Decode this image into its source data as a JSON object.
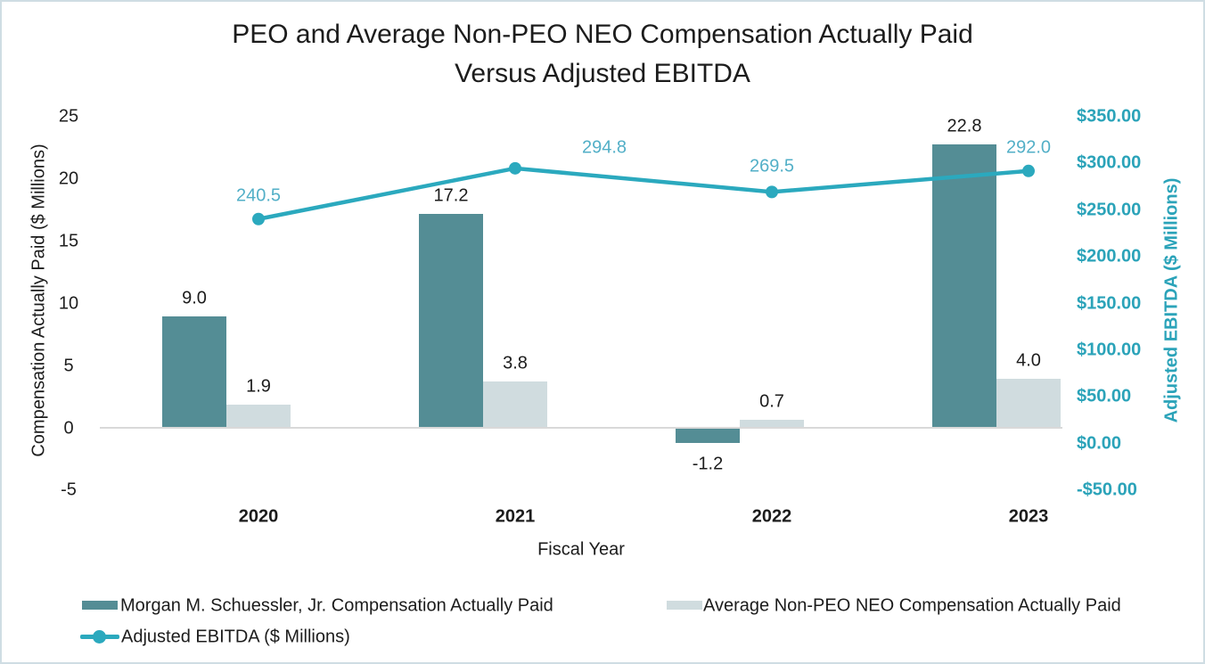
{
  "chart_data": {
    "type": "combo",
    "title_lines": [
      "PEO and Average Non-PEO NEO Compensation Actually Paid",
      "Versus Adjusted EBITDA"
    ],
    "categories": [
      "2020",
      "2021",
      "2022",
      "2023"
    ],
    "xlabel": "Fiscal Year",
    "left_axis": {
      "label": "Compensation Actually Paid ($ Millions)",
      "ticks": [
        25,
        20,
        15,
        10,
        5,
        0,
        -5
      ],
      "range": [
        -5,
        25
      ]
    },
    "right_axis": {
      "label": "Adjusted EBITDA ($ Millions)",
      "tick_values": [
        350,
        300,
        250,
        200,
        150,
        100,
        50,
        0,
        -50
      ],
      "tick_labels": [
        "$350.00",
        "$300.00",
        "$250.00",
        "$200.00",
        "$150.00",
        "$100.00",
        "$50.00",
        "$0.00",
        "-$50.00"
      ],
      "range": [
        -50,
        350
      ],
      "label_color": "#2ba3b9"
    },
    "series": [
      {
        "name": "Morgan M. Schuessler, Jr. Compensation Actually Paid",
        "type": "bar",
        "axis": "left",
        "color": "#548d95",
        "values": [
          9.0,
          17.2,
          -1.2,
          22.8
        ],
        "labels": [
          "9.0",
          "17.2",
          "-1.2",
          "22.8"
        ]
      },
      {
        "name": "Average Non-PEO NEO Compensation Actually Paid",
        "type": "bar",
        "axis": "left",
        "color": "#d0dcdf",
        "values": [
          1.9,
          3.8,
          0.7,
          4.0
        ],
        "labels": [
          "1.9",
          "3.8",
          "0.7",
          "4.0"
        ]
      },
      {
        "name": "Adjusted EBITDA ($ Millions)",
        "type": "line",
        "axis": "right",
        "color": "#2ba9be",
        "label_color": "#52afc7",
        "values": [
          240.5,
          294.8,
          269.5,
          292.0
        ],
        "labels": [
          "240.5",
          "294.8",
          "269.5",
          "292.0"
        ]
      }
    ],
    "legend_position": "bottom",
    "grid": false,
    "axis_line_color": "#d9d9d9",
    "border_color": "#cfdde3"
  }
}
